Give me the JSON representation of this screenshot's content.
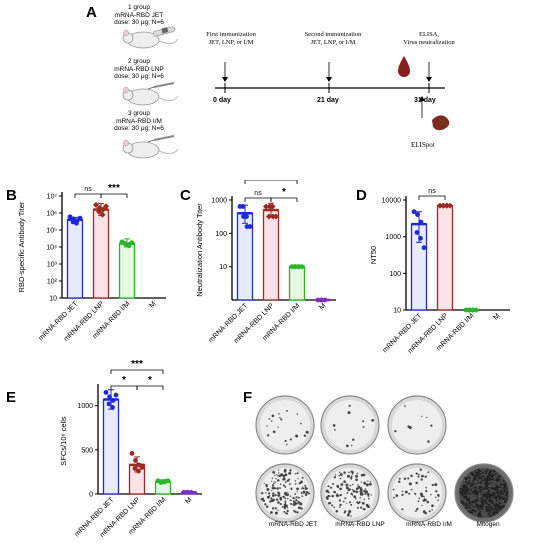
{
  "panels": {
    "A": "A",
    "B": "B",
    "C": "C",
    "D": "D",
    "E": "E",
    "F": "F"
  },
  "panelA": {
    "groups": [
      {
        "line1": "1 group",
        "line2": "mRNA-RBD JET",
        "line3": "dose: 30 μg; N=6"
      },
      {
        "line1": "2 group",
        "line2": "mRNA-RBD LNP",
        "line3": "dose: 30 μg; N=6"
      },
      {
        "line1": "3 group",
        "line2": "mRNA-RBD I/M",
        "line3": "dose: 30 μg; N=6"
      }
    ],
    "timeline": {
      "events": [
        {
          "line1": "First immunization",
          "line2": "JET, LNP, or I/M",
          "day": "0 day"
        },
        {
          "line1": "Second immunization",
          "line2": "JET, LNP, or I/M",
          "day": "21 day"
        },
        {
          "line1": "ELISA,",
          "line2": "Virus neutralization",
          "day": "31 day"
        }
      ],
      "elispot": "ELISpot"
    }
  },
  "chart_data": [
    {
      "panel": "B",
      "type": "bar",
      "ylabel": "RBD-specific Antibody Titer",
      "yscale": "log",
      "ylim": [
        10,
        10000000
      ],
      "yticks": [
        "10",
        "10²",
        "10³",
        "10⁴",
        "10⁵",
        "10⁶",
        "10⁷"
      ],
      "categories": [
        "mRNA-RBD JET",
        "mRNA-RBD LNP",
        "mRNA-RBD I/M",
        "M"
      ],
      "values": [
        400000,
        1600000,
        16000,
        0
      ],
      "errors_high": [
        550000,
        3600000,
        30000,
        0
      ],
      "errors_low": [
        250000,
        700000,
        10000,
        0
      ],
      "points": [
        [
          600000,
          450000,
          350000,
          300000,
          250000,
          500000
        ],
        [
          3000000,
          2000000,
          1600000,
          1200000,
          800000,
          2500000
        ],
        [
          20000,
          15000,
          12000,
          16000,
          14000,
          18000
        ],
        []
      ],
      "colors": [
        "#1f2ad1",
        "#9a2b22",
        "#2bb52b",
        "#7b2fbf"
      ],
      "fills": [
        "#e8ebff",
        "#fde2e8",
        "#e6f7e2",
        "#f2e6f9"
      ],
      "significance": [
        {
          "from": 0,
          "to": 1,
          "label": "ns"
        },
        {
          "from": 1,
          "to": 2,
          "label": "***"
        },
        {
          "from": 0,
          "to": 2,
          "label": "*"
        }
      ]
    },
    {
      "panel": "C",
      "type": "bar",
      "ylabel": "Neutralization Antibody Titer",
      "yscale": "log",
      "ylim": [
        1,
        1000
      ],
      "yticks": [
        "1000",
        "100",
        "10"
      ],
      "categories": [
        "mRNA-RBD JET",
        "mRNA-RBD LNP",
        "mRNA-RBD I/M",
        "M"
      ],
      "values": [
        400,
        500,
        10,
        1
      ],
      "errors_high": [
        700,
        800,
        10,
        1
      ],
      "errors_low": [
        200,
        300,
        10,
        1
      ],
      "points": [
        [
          640,
          320,
          160,
          640,
          320,
          160
        ],
        [
          640,
          640,
          320,
          320,
          640,
          320
        ],
        [
          10,
          10,
          10,
          10,
          10,
          10
        ],
        [
          1,
          1,
          1,
          1
        ]
      ],
      "colors": [
        "#1f2ad1",
        "#9a2b22",
        "#2bb52b",
        "#7b2fbf"
      ],
      "fills": [
        "#e8ebff",
        "#fde2e8",
        "#e6f7e2",
        "#f2e6f9"
      ],
      "significance": [
        {
          "from": 0,
          "to": 1,
          "label": "ns"
        },
        {
          "from": 1,
          "to": 2,
          "label": "*"
        },
        {
          "from": 0,
          "to": 2,
          "label": "*"
        }
      ]
    },
    {
      "panel": "D",
      "type": "bar",
      "ylabel": "NT50",
      "yscale": "log",
      "ylim": [
        10,
        10000
      ],
      "yticks": [
        "10000",
        "1000",
        "100",
        "10"
      ],
      "categories": [
        "mRNA-RBD JET",
        "mRNA-RBD LNP",
        "mRNA-RBD I/M",
        "M"
      ],
      "values": [
        2200,
        7000,
        10,
        0
      ],
      "errors_high": [
        4800,
        7000,
        10,
        0
      ],
      "errors_low": [
        700,
        7000,
        10,
        0
      ],
      "points": [
        [
          4800,
          4000,
          2500,
          1300,
          900,
          500
        ],
        [
          7000,
          7000,
          7000,
          7000,
          7000,
          7000
        ],
        [
          10,
          10,
          10,
          10,
          10,
          10
        ],
        []
      ],
      "colors": [
        "#1f2ad1",
        "#9a2b22",
        "#2bb52b",
        "#7b2fbf"
      ],
      "fills": [
        "#e8ebff",
        "#fde2e8",
        "#e6f7e2",
        "#f2e6f9"
      ],
      "significance": [
        {
          "from": 0,
          "to": 1,
          "label": "ns"
        }
      ]
    },
    {
      "panel": "E",
      "type": "bar",
      "ylabel": "SFCs/10⁶ cells",
      "yscale": "linear",
      "ylim": [
        0,
        1200
      ],
      "yticks": [
        "0",
        "500",
        "1000"
      ],
      "categories": [
        "mRNA-RBD JET",
        "mRNA-RBD LNP",
        "mRNA-RBD I/M",
        "M"
      ],
      "values": [
        1070,
        330,
        140,
        20
      ],
      "errors_high": [
        1180,
        420,
        160,
        25
      ],
      "errors_low": [
        960,
        250,
        120,
        15
      ],
      "points": [
        [
          1150,
          1100,
          1060,
          1020,
          980,
          1120
        ],
        [
          460,
          380,
          330,
          290,
          260,
          300
        ],
        [
          150,
          140,
          145,
          130,
          135,
          150
        ],
        [
          20,
          20,
          20,
          20
        ]
      ],
      "colors": [
        "#1f2ad1",
        "#9a2b22",
        "#2bb52b",
        "#7b2fbf"
      ],
      "fills": [
        "#e8ebff",
        "#fde2e8",
        "#e6f7e2",
        "#f2e6f9"
      ],
      "significance": [
        {
          "from": 0,
          "to": 1,
          "label": "*"
        },
        {
          "from": 1,
          "to": 2,
          "label": "*"
        },
        {
          "from": 0,
          "to": 2,
          "label": "***"
        }
      ]
    }
  ],
  "panelF": {
    "labels": [
      "mRNA-RBD JET",
      "mRNA-RBD LNP",
      "mRNA-RBD I/M",
      "Mitogen"
    ]
  }
}
